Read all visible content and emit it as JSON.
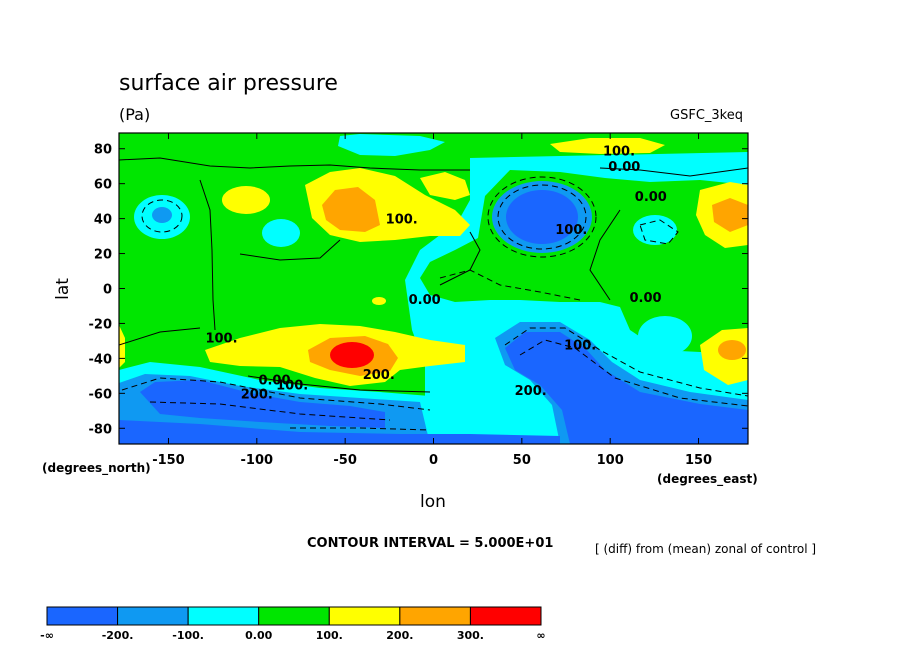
{
  "chart_data": {
    "type": "heatmap",
    "title": "surface air pressure",
    "units": "(Pa)",
    "model": "GSFC_3keq",
    "xlabel": "lon",
    "ylabel": "lat",
    "x_note": "(degrees_east)",
    "y_note": "(degrees_north)",
    "xlim": [
      -178,
      178
    ],
    "ylim": [
      -89,
      89
    ],
    "xticks": [
      -150,
      -100,
      -50,
      0,
      50,
      100,
      150
    ],
    "yticks": [
      80,
      60,
      40,
      20,
      0,
      -20,
      -40,
      -60,
      -80
    ],
    "contour_interval_text": "CONTOUR INTERVAL = 5.000E+01",
    "footnote": "[ (diff) from (mean) zonal of control ]",
    "colorbar": {
      "boundaries": [
        "-∞",
        "-200.",
        "-100.",
        "0.00",
        "100.",
        "200.",
        "300.",
        "∞"
      ],
      "colors": [
        "#1a66ff",
        "#0f99f2",
        "#00ffff",
        "#00e600",
        "#ffff00",
        "#ffa500",
        "#ff0000"
      ]
    },
    "contour_labels": [
      {
        "text": "100.",
        "lon": 105,
        "lat": 79
      },
      {
        "text": "0.00",
        "lon": 108,
        "lat": 70
      },
      {
        "text": "0.00",
        "lon": 123,
        "lat": 53
      },
      {
        "text": "100.",
        "lon": -18,
        "lat": 40
      },
      {
        "text": "100.",
        "lon": 78,
        "lat": 34
      },
      {
        "text": "0.00",
        "lon": -5,
        "lat": -6
      },
      {
        "text": "0.00",
        "lon": 120,
        "lat": -5
      },
      {
        "text": "100.",
        "lon": -120,
        "lat": -28
      },
      {
        "text": "100.",
        "lon": 83,
        "lat": -32
      },
      {
        "text": "200.",
        "lon": -31,
        "lat": -49
      },
      {
        "text": "0.00",
        "lon": -90,
        "lat": -52
      },
      {
        "text": "100.",
        "lon": -80,
        "lat": -55
      },
      {
        "text": "200.",
        "lon": -100,
        "lat": -60
      },
      {
        "text": "200.",
        "lon": 55,
        "lat": -58
      }
    ]
  }
}
